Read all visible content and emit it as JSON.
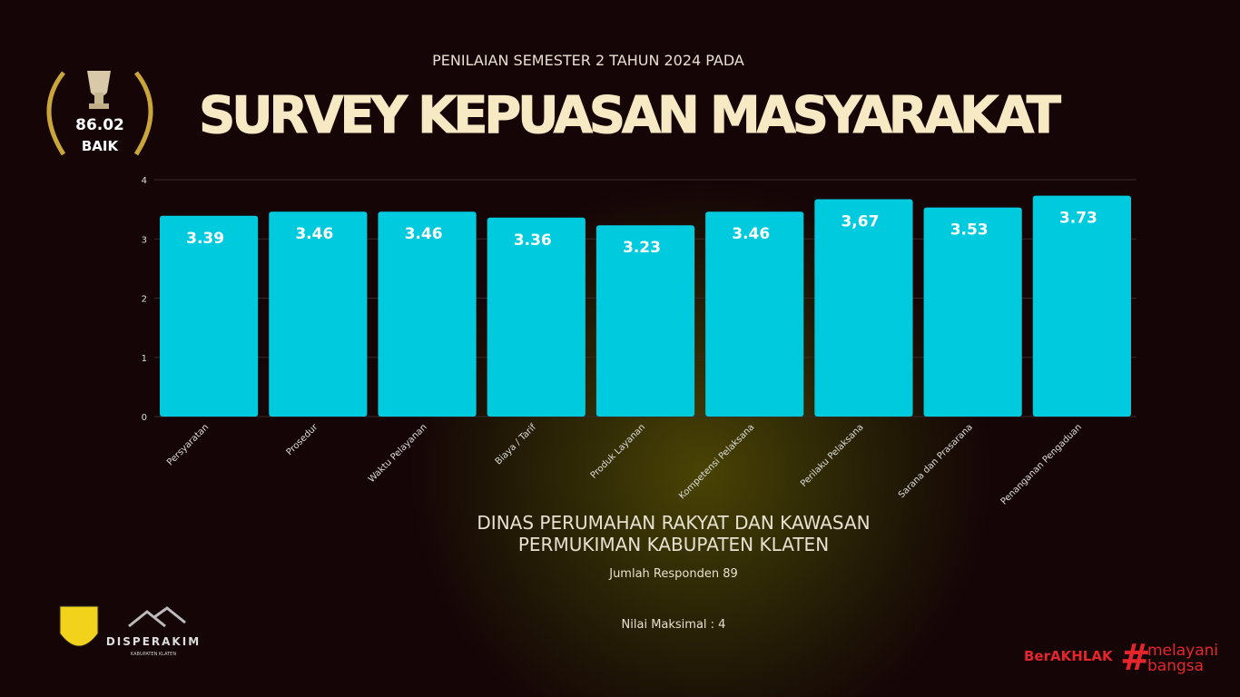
{
  "header": {
    "subtitle": "PENILAIAN SEMESTER 2 TAHUN 2024 PADA",
    "title": "SURVEY KEPUASAN MASYARAKAT"
  },
  "badge": {
    "score": "86.02",
    "grade": "BAIK"
  },
  "chart_data": {
    "type": "bar",
    "categories": [
      "Persyaratan",
      "Prosedur",
      "Waktu Pelayanan",
      "Biaya / Tarif",
      "Produk Layanan",
      "Kompetensi Pelaksana",
      "Perilaku Pelaksana",
      "Sarana dan Prasarana",
      "Penanganan Pengaduan"
    ],
    "values": [
      3.39,
      3.46,
      3.46,
      3.36,
      3.23,
      3.46,
      3.67,
      3.53,
      3.73
    ],
    "value_labels": [
      "3.39",
      "3.46",
      "3.46",
      "3.36",
      "3.23",
      "3.46",
      "3,67",
      "3.53",
      "3.73"
    ],
    "color": "#00cadd",
    "ylim": [
      0,
      4
    ],
    "yticks": [
      0,
      1,
      2,
      3,
      4
    ],
    "grid": true
  },
  "footer": {
    "agency": "DINAS PERUMAHAN RAKYAT DAN KAWASAN PERMUKIMAN KABUPATEN KLATEN",
    "respondents": "Jumlah Responden 89",
    "max_value": "Nilai Maksimal : 4"
  },
  "logos": {
    "disperakim": "DISPERAKIM",
    "regency": "KABUPATEN KLATEN",
    "berakhlak": "BerAKHLAK",
    "melayani": "melayani",
    "bangsa": "bangsa"
  }
}
